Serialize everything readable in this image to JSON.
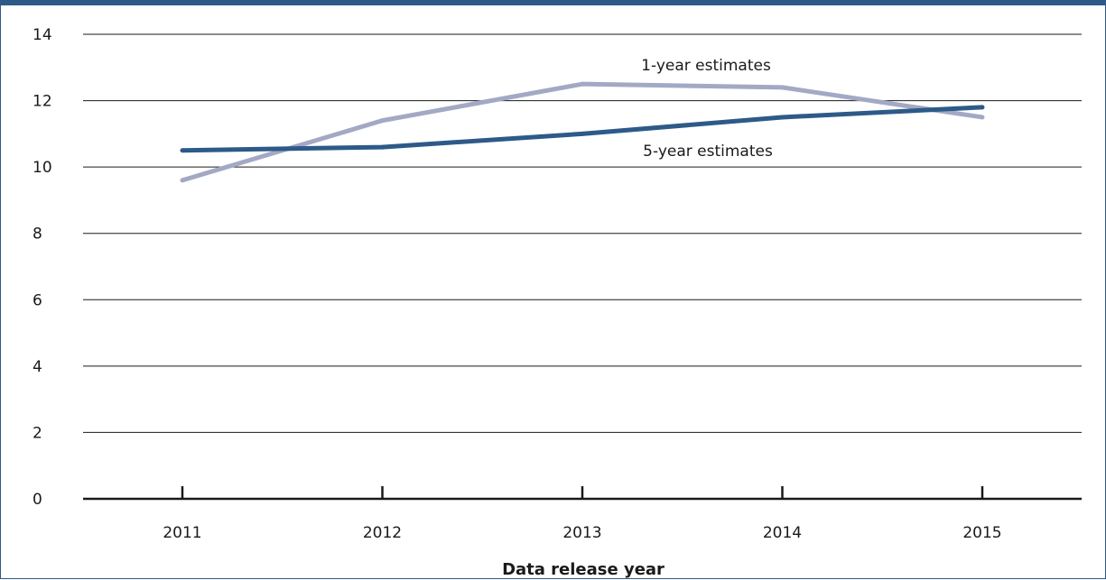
{
  "chart_data": {
    "type": "line",
    "title": "",
    "xlabel": "Data release year",
    "ylabel": "",
    "categories": [
      "2011",
      "2012",
      "2013",
      "2014",
      "2015"
    ],
    "ylim": [
      0,
      14
    ],
    "yticks": [
      0,
      2,
      4,
      6,
      8,
      10,
      12,
      14
    ],
    "grid": true,
    "series": [
      {
        "name": "1-year estimates",
        "values": [
          9.6,
          11.4,
          12.5,
          12.4,
          11.5
        ],
        "color": "#a3a9c4"
      },
      {
        "name": "5-year estimates",
        "values": [
          10.5,
          10.6,
          11.0,
          11.5,
          11.8
        ],
        "color": "#2d5a88"
      }
    ]
  },
  "colors": {
    "frame": "#2d5a88",
    "gridline": "#1a1a1a",
    "axis": "#1a1a1a"
  }
}
